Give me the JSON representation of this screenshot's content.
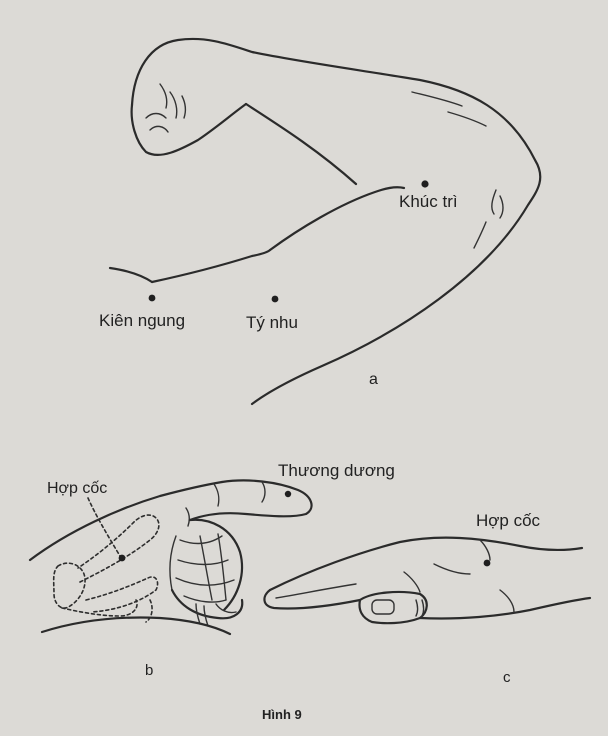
{
  "labels": {
    "khuc_tri": "Khúc trì",
    "kien_ngung": "Kiên ngung",
    "ty_nhu": "Tý nhu",
    "panel_a": "a",
    "hop_coc_b": "Hợp cốc",
    "thuong_duong": "Thương dương",
    "hop_coc_c": "Hợp cốc",
    "panel_b": "b",
    "panel_c": "c",
    "caption": "Hình 9"
  }
}
